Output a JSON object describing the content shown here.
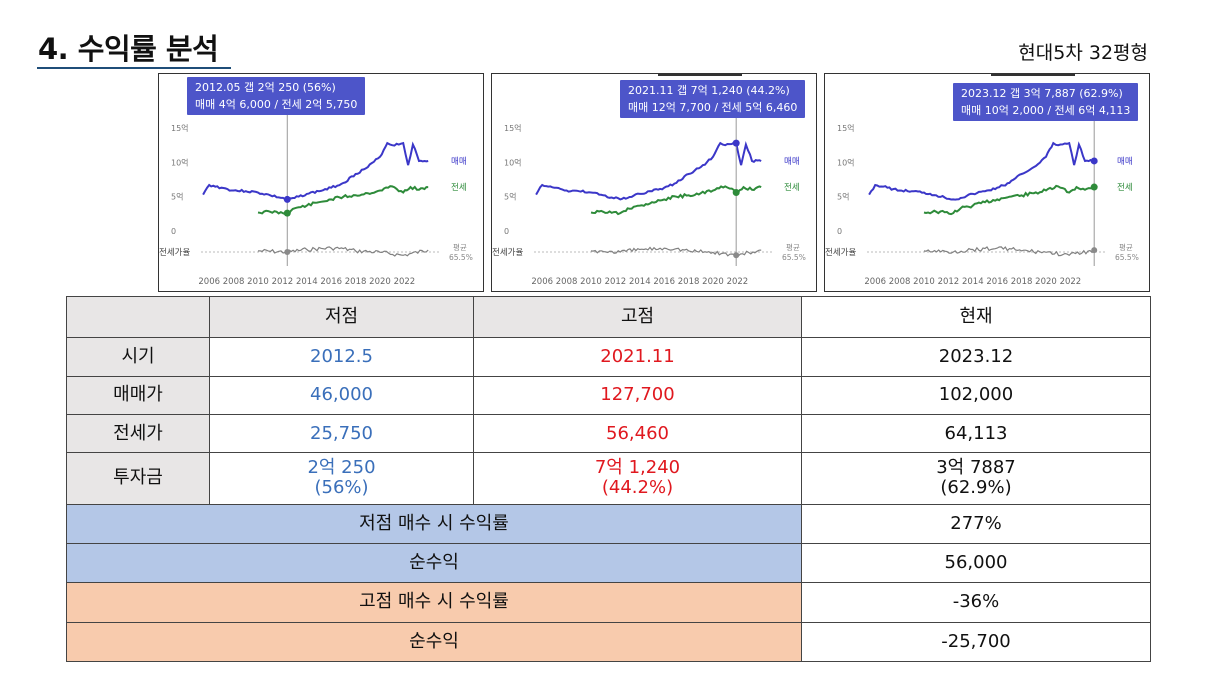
{
  "page": {
    "title": "4. 수익률 분석",
    "subtitle": "현대5차 32평형"
  },
  "charts": [
    {
      "tooltip_line1": "2012.05  갭 2억 250 (56%)",
      "tooltip_line2": "매매 4억 6,000 / 전세 2억 5,750",
      "y_ticks": [
        "15억",
        "10억",
        "5억",
        "0"
      ],
      "x_ticks": [
        "2006",
        "2008",
        "2010",
        "2012",
        "2014",
        "2016",
        "2018",
        "2020",
        "2022"
      ],
      "ratio_label": "전세가율",
      "avg_label": "평균",
      "avg_value": "65.5%",
      "legend_sale": "매매",
      "legend_jeonse": "전세",
      "marker_year": 2012.4
    },
    {
      "tooltip_line1": "2021.11  갭 7억 1,240 (44.2%)",
      "tooltip_line2": "매매 12억 7,700 / 전세 5억 6,460",
      "y_ticks": [
        "15억",
        "10억",
        "5억",
        "0"
      ],
      "x_ticks": [
        "2006",
        "2008",
        "2010",
        "2012",
        "2014",
        "2016",
        "2018",
        "2020",
        "2022"
      ],
      "ratio_label": "전세가율",
      "avg_label": "평균",
      "avg_value": "65.5%",
      "legend_sale": "매매",
      "legend_jeonse": "전세",
      "marker_year": 2021.9
    },
    {
      "tooltip_line1": "2023.12  갭 3억 7,887 (62.9%)",
      "tooltip_line2": "매매 10억 2,000 / 전세 6억 4,113",
      "y_ticks": [
        "15억",
        "10억",
        "5억",
        "0"
      ],
      "x_ticks": [
        "2006",
        "2008",
        "2010",
        "2012",
        "2014",
        "2016",
        "2018",
        "2020",
        "2022"
      ],
      "ratio_label": "전세가율",
      "avg_label": "평균",
      "avg_value": "65.5%",
      "legend_sale": "매매",
      "legend_jeonse": "전세",
      "marker_year": 2023.95
    }
  ],
  "chart_data": {
    "type": "line",
    "x_range": [
      2005,
      2025
    ],
    "ylim": [
      0,
      15
    ],
    "series": [
      {
        "name": "매매",
        "color": "#3b37c8",
        "x": [
          2005.5,
          2006,
          2007,
          2008,
          2009,
          2010,
          2011,
          2012.4,
          2013,
          2014,
          2015,
          2016,
          2017,
          2018,
          2019,
          2020,
          2020.6,
          2021,
          2021.9,
          2022.3,
          2022.7,
          2023.2,
          2023.95
        ],
        "y": [
          5.3,
          6.7,
          6.3,
          5.9,
          5.8,
          5.6,
          5.2,
          4.6,
          4.8,
          5.4,
          5.8,
          6.3,
          7.0,
          8.3,
          9.3,
          10.8,
          12.8,
          12.5,
          12.8,
          9.6,
          12.6,
          10.2,
          10.2
        ]
      },
      {
        "name": "전세",
        "color": "#2e8b3a",
        "x": [
          2010,
          2011,
          2012.4,
          2013,
          2014,
          2015,
          2016,
          2017,
          2018,
          2019,
          2020,
          2021,
          2021.9,
          2022.5,
          2023.2,
          2023.95
        ],
        "y": [
          2.7,
          2.8,
          2.6,
          3.3,
          3.7,
          4.2,
          4.6,
          5.0,
          5.2,
          5.5,
          5.9,
          6.5,
          5.6,
          6.4,
          6.0,
          6.4
        ]
      }
    ],
    "ratio_series": {
      "name": "전세가율",
      "color": "#808080",
      "x": [
        2010,
        2012.4,
        2014,
        2016,
        2017,
        2018,
        2020,
        2021.9,
        2023.95
      ],
      "y": [
        60,
        56,
        65,
        70,
        68,
        60,
        55,
        44.2,
        62.9
      ]
    }
  },
  "table": {
    "headers": [
      "저점",
      "고점",
      "현재"
    ],
    "rows": [
      {
        "label": "시기",
        "low": "2012.5",
        "high": "2021.11",
        "current": "2023.12"
      },
      {
        "label": "매매가",
        "low": "46,000",
        "high": "127,700",
        "current": "102,000"
      },
      {
        "label": "전세가",
        "low": "25,750",
        "high": "56,460",
        "current": "64,113"
      },
      {
        "label": "투자금",
        "low": "2억 250",
        "low2": "(56%)",
        "high": "7억 1,240",
        "high2": "(44.2%)",
        "current": "3억 7887",
        "current2": "(62.9%)"
      }
    ],
    "summary": [
      {
        "label": "저점 매수 시 수익률",
        "value": "277%"
      },
      {
        "label": "순수익",
        "value": "56,000"
      },
      {
        "label": "고점 매수 시 수익률",
        "value": "-36%"
      },
      {
        "label": "순수익",
        "value": "-25,700"
      }
    ]
  }
}
